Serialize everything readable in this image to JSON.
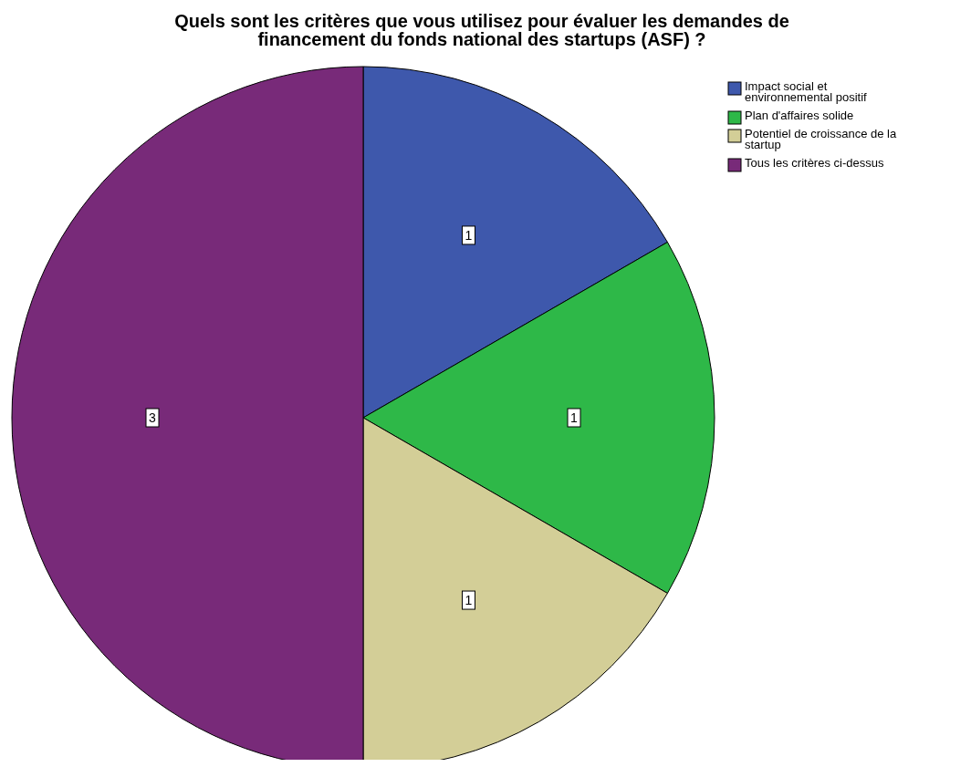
{
  "chart_data": {
    "type": "pie",
    "title": "Quels sont les critères que vous utilisez pour évaluer les demandes de financement du fonds national des startups (ASF) ?",
    "categories": [
      "Impact social et environnemental positif",
      "Plan d'affaires solide",
      "Potentiel de croissance de la startup",
      "Tous les critères ci-dessus"
    ],
    "values": [
      1,
      1,
      1,
      3
    ],
    "colors": [
      "#3e58ac",
      "#2eb848",
      "#d3ce97",
      "#782a79"
    ],
    "data_labels": true,
    "legend": "top right"
  }
}
